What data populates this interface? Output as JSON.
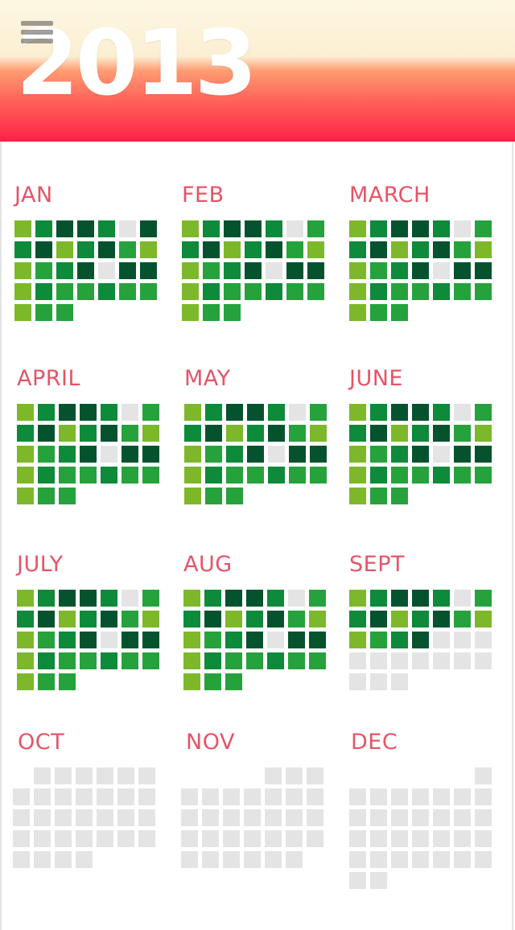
{
  "header": {
    "year": "2013",
    "menu_icon": "hamburger-menu-icon"
  },
  "colors": {
    "light": "#7db82b",
    "mid": "#25a23c",
    "dark": "#0d8a3a",
    "darker": "#05532e",
    "empty": "#e4e4e4",
    "label": "#e65467"
  },
  "months": [
    {
      "name": "JAN",
      "start": 0,
      "rows": [
        "LMDDMED",
        "MDLMDML",
        "LMMDEDD",
        "LMMMMMM",
        "LMM"
      ]
    },
    {
      "name": "FEB",
      "start": 0,
      "rows": [
        "LMDDMEM",
        "MDLMDML",
        "LMMDEDD",
        "LMMMMMM",
        "LMM"
      ]
    },
    {
      "name": "MARCH",
      "start": 0,
      "rows": [
        "LMDDMEM",
        "MDLMDML",
        "LMMDEDD",
        "LMMMMMM",
        "LMM"
      ]
    },
    {
      "name": "APRIL",
      "start": 0,
      "rows": [
        "LMDDMEM",
        "MDLMDML",
        "LMMDEDD",
        "LMMMMMM",
        "LMM"
      ]
    },
    {
      "name": "MAY",
      "start": 0,
      "rows": [
        "LMDDMEM",
        "MDLMDML",
        "LMMDEDD",
        "LMMMMMM",
        "LMM"
      ]
    },
    {
      "name": "JUNE",
      "start": 0,
      "rows": [
        "LMDDMEM",
        "MDLMDML",
        "LMMDEDD",
        "LMMMMMM",
        "LMM"
      ]
    },
    {
      "name": "JULY",
      "start": 0,
      "rows": [
        "LMDDMEM",
        "MDLMDML",
        "LMMDEDD",
        "LMMMMMM",
        "LMM"
      ]
    },
    {
      "name": "AUG",
      "start": 0,
      "rows": [
        "LMDDMEM",
        "MDLMDML",
        "LMMDEDD",
        "LMMMMMM",
        "LMM"
      ]
    },
    {
      "name": "SEPT",
      "start": 0,
      "rows": [
        "LMDDMEM",
        "MDLMDML",
        "LMMDEEE",
        "EEEEEEE",
        "EEE"
      ]
    },
    {
      "name": "OCT",
      "start": 0,
      "rows": [
        " EEEEEE",
        "EEEEEEE",
        "EEEEEEE",
        "EEEEEEE",
        "EEEE"
      ]
    },
    {
      "name": "NOV",
      "start": 0,
      "rows": [
        "    EEE",
        "EEEEEEE",
        "EEEEEEE",
        "EEEEEEE",
        "EEEEEE"
      ]
    },
    {
      "name": "DEC",
      "start": 0,
      "rows": [
        "      E",
        "EEEEEEE",
        "EEEEEEE",
        "EEEEEEE",
        "EEEEEEE",
        "EE"
      ]
    }
  ]
}
